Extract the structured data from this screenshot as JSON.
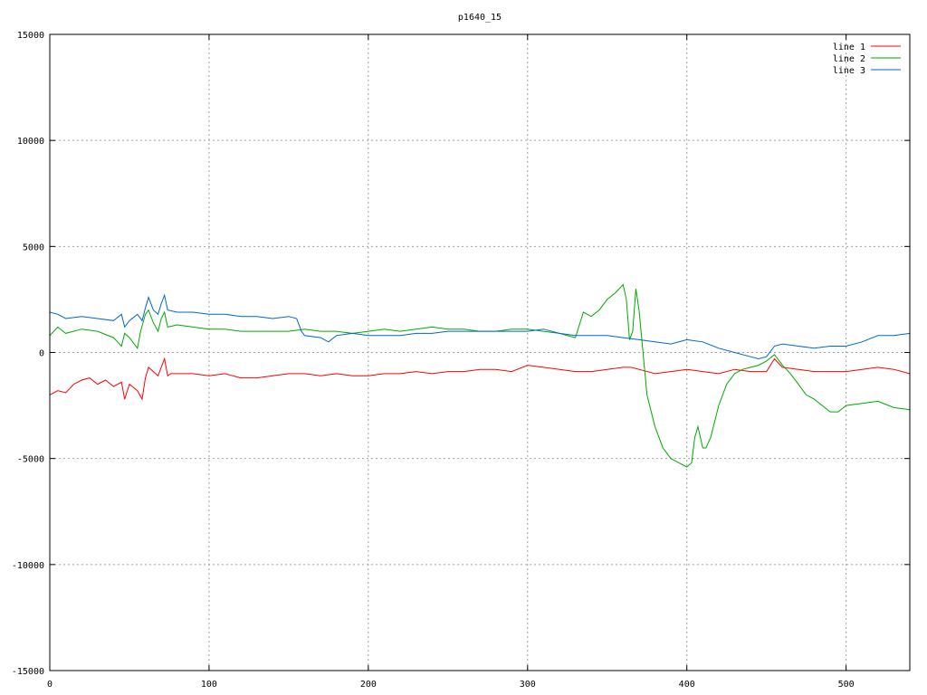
{
  "chart_data": {
    "type": "line",
    "title": "p1640_15",
    "xlabel": "",
    "ylabel": "",
    "xlim": [
      0,
      540
    ],
    "ylim": [
      -15000,
      15000
    ],
    "x_ticks": [
      0,
      100,
      200,
      300,
      400,
      500
    ],
    "y_ticks": [
      -15000,
      -10000,
      -5000,
      0,
      5000,
      10000,
      15000
    ],
    "grid": true,
    "legend_position": "top-right",
    "series": [
      {
        "name": "line 1",
        "color": "#ff0000",
        "x": [
          0,
          5,
          10,
          15,
          20,
          25,
          30,
          35,
          40,
          45,
          47,
          50,
          55,
          58,
          60,
          62,
          65,
          68,
          70,
          72,
          74,
          76,
          80,
          90,
          100,
          110,
          120,
          130,
          140,
          150,
          160,
          170,
          180,
          190,
          200,
          210,
          220,
          230,
          240,
          250,
          260,
          270,
          280,
          290,
          300,
          310,
          320,
          330,
          340,
          350,
          360,
          365,
          370,
          380,
          390,
          400,
          410,
          420,
          430,
          440,
          450,
          455,
          460,
          470,
          480,
          490,
          500,
          510,
          520,
          530,
          540
        ],
        "y": [
          -2000,
          -1800,
          -1900,
          -1500,
          -1300,
          -1200,
          -1500,
          -1300,
          -1600,
          -1400,
          -2200,
          -1500,
          -1800,
          -2200,
          -1200,
          -700,
          -900,
          -1100,
          -700,
          -300,
          -1100,
          -1000,
          -1000,
          -1000,
          -1100,
          -1000,
          -1200,
          -1200,
          -1100,
          -1000,
          -1000,
          -1100,
          -1000,
          -1100,
          -1100,
          -1000,
          -1000,
          -900,
          -1000,
          -900,
          -900,
          -800,
          -800,
          -900,
          -600,
          -700,
          -800,
          -900,
          -900,
          -800,
          -700,
          -700,
          -800,
          -1000,
          -900,
          -800,
          -900,
          -1000,
          -800,
          -900,
          -900,
          -300,
          -700,
          -800,
          -900,
          -900,
          -900,
          -800,
          -700,
          -800,
          -1000
        ]
      },
      {
        "name": "line 2",
        "color": "#00aa00",
        "x": [
          0,
          5,
          10,
          20,
          30,
          40,
          45,
          47,
          50,
          55,
          57,
          60,
          62,
          65,
          68,
          70,
          72,
          74,
          80,
          90,
          100,
          110,
          120,
          130,
          140,
          150,
          160,
          170,
          180,
          190,
          200,
          210,
          220,
          230,
          240,
          250,
          260,
          270,
          280,
          290,
          300,
          310,
          320,
          330,
          335,
          340,
          345,
          350,
          355,
          360,
          362,
          364,
          366,
          368,
          370,
          375,
          380,
          385,
          390,
          395,
          400,
          403,
          405,
          407,
          410,
          412,
          415,
          420,
          425,
          430,
          435,
          440,
          445,
          450,
          455,
          460,
          465,
          470,
          475,
          480,
          485,
          490,
          495,
          500,
          510,
          520,
          530,
          540
        ],
        "y": [
          800,
          1200,
          900,
          1100,
          1000,
          700,
          300,
          900,
          700,
          200,
          1000,
          1800,
          2000,
          1400,
          1000,
          1600,
          1900,
          1200,
          1300,
          1200,
          1100,
          1100,
          1000,
          1000,
          1000,
          1000,
          1100,
          1000,
          1000,
          900,
          1000,
          1100,
          1000,
          1100,
          1200,
          1100,
          1100,
          1000,
          1000,
          1100,
          1100,
          1000,
          900,
          700,
          1900,
          1700,
          2000,
          2500,
          2800,
          3200,
          2500,
          600,
          1000,
          3000,
          2000,
          -2000,
          -3500,
          -4500,
          -5000,
          -5200,
          -5400,
          -5200,
          -4000,
          -3500,
          -4500,
          -4500,
          -4000,
          -2500,
          -1500,
          -1000,
          -800,
          -700,
          -600,
          -400,
          -100,
          -600,
          -1000,
          -1500,
          -2000,
          -2200,
          -2500,
          -2800,
          -2800,
          -2500,
          -2400,
          -2300,
          -2600,
          -2700
        ]
      },
      {
        "name": "line 3",
        "color": "#0066cc",
        "x": [
          0,
          5,
          10,
          20,
          30,
          40,
          45,
          47,
          50,
          55,
          58,
          60,
          62,
          65,
          68,
          70,
          72,
          74,
          80,
          90,
          100,
          110,
          120,
          130,
          140,
          150,
          155,
          158,
          160,
          170,
          175,
          180,
          190,
          200,
          210,
          220,
          230,
          240,
          250,
          260,
          270,
          280,
          290,
          300,
          310,
          320,
          330,
          340,
          350,
          360,
          370,
          380,
          390,
          400,
          410,
          420,
          430,
          440,
          445,
          450,
          455,
          460,
          470,
          480,
          490,
          500,
          510,
          520,
          530,
          540
        ],
        "y": [
          1900,
          1800,
          1600,
          1700,
          1600,
          1500,
          1800,
          1200,
          1500,
          1800,
          1500,
          2100,
          2600,
          2000,
          1800,
          2300,
          2700,
          2000,
          1900,
          1900,
          1800,
          1800,
          1700,
          1700,
          1600,
          1700,
          1600,
          1000,
          800,
          700,
          500,
          800,
          900,
          800,
          800,
          800,
          900,
          900,
          1000,
          1000,
          1000,
          1000,
          1000,
          1000,
          1100,
          900,
          800,
          800,
          800,
          700,
          600,
          500,
          400,
          600,
          500,
          200,
          0,
          -200,
          -300,
          -200,
          300,
          400,
          300,
          200,
          300,
          300,
          500,
          800,
          800,
          900
        ]
      }
    ]
  }
}
